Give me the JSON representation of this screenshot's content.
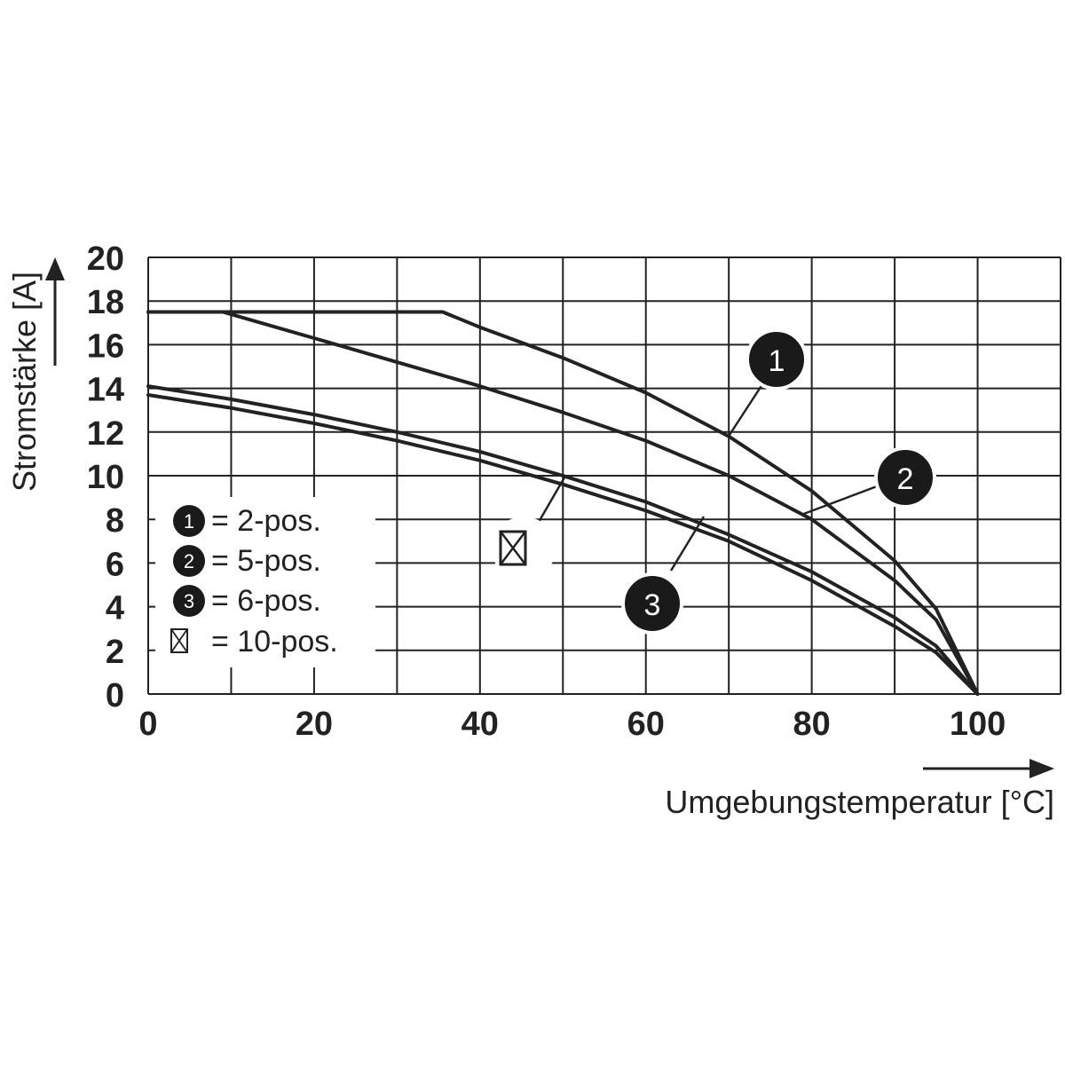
{
  "chart_data": {
    "type": "line",
    "xlabel": "Umgebungstemperatur [°C]",
    "ylabel": "Stromstärke [A]",
    "xlim": [
      0,
      110
    ],
    "ylim": [
      0,
      20
    ],
    "x_ticks": [
      "0",
      "20",
      "40",
      "60",
      "80",
      "100"
    ],
    "y_ticks": [
      "0",
      "2",
      "4",
      "6",
      "8",
      "10",
      "12",
      "14",
      "16",
      "18",
      "20"
    ],
    "grid": true,
    "legend_position": "bottom-left",
    "series": [
      {
        "name": "2-pos.",
        "marker": "1",
        "x": [
          0,
          10,
          20,
          30,
          35.5,
          40,
          50,
          60,
          70,
          80,
          90,
          95,
          100
        ],
        "y": [
          17.5,
          17.5,
          17.5,
          17.5,
          17.5,
          16.8,
          15.4,
          13.8,
          11.8,
          9.3,
          6.1,
          3.9,
          0
        ]
      },
      {
        "name": "5-pos.",
        "marker": "2",
        "x": [
          0,
          9,
          20,
          30,
          40,
          50,
          60,
          70,
          80,
          90,
          95,
          100
        ],
        "y": [
          17.5,
          17.5,
          16.3,
          15.2,
          14.1,
          12.9,
          11.6,
          10.0,
          8.0,
          5.2,
          3.4,
          0
        ]
      },
      {
        "name": "6-pos.",
        "marker": "3",
        "x": [
          0,
          10,
          20,
          30,
          40,
          50,
          60,
          70,
          80,
          90,
          95,
          100
        ],
        "y": [
          14.1,
          13.5,
          12.8,
          12.0,
          11.1,
          10.0,
          8.8,
          7.3,
          5.6,
          3.5,
          2.2,
          0
        ]
      },
      {
        "name": "10-pos.",
        "marker": "☒",
        "x": [
          0,
          10,
          20,
          30,
          40,
          50,
          60,
          70,
          80,
          90,
          95,
          100
        ],
        "y": [
          13.7,
          13.1,
          12.4,
          11.6,
          10.7,
          9.6,
          8.4,
          7.0,
          5.2,
          3.1,
          1.9,
          0
        ]
      }
    ]
  },
  "legend": [
    {
      "marker": "1",
      "label": "= 2-pos."
    },
    {
      "marker": "2",
      "label": "= 5-pos."
    },
    {
      "marker": "3",
      "label": "= 6-pos."
    },
    {
      "marker": "☒",
      "label": "= 10-pos."
    }
  ],
  "callouts": [
    "1",
    "2",
    "3",
    "☒"
  ],
  "colors": {
    "line": "#222222",
    "grid": "#222222",
    "badge": "#1a1a1a"
  }
}
